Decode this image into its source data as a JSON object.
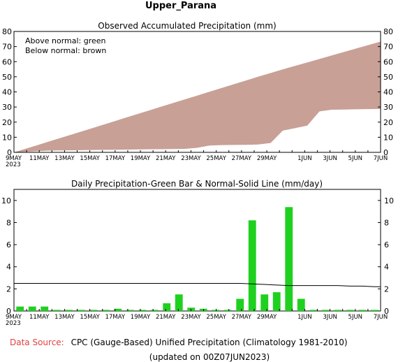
{
  "page_title": "Upper_Parana",
  "footer": {
    "source_label": "Data Source:",
    "source_text": "CPC (Gauge-Based) Unified Precipitation (Climatology 1981-2010)",
    "updated": "(updated on 00Z07JUN2023)"
  },
  "colors": {
    "above_normal": "#00c000",
    "below_normal": "#c8a096",
    "bar": "#1fd11f",
    "source_label": "#e04040"
  },
  "chart_data": [
    {
      "type": "area",
      "title": "Observed Accumulated Precipitation (mm)",
      "annotations": [
        "Above normal: green",
        "Below normal: brown"
      ],
      "x_tick_labels": [
        "9MAY\n2023",
        "11MAY",
        "13MAY",
        "15MAY",
        "17MAY",
        "19MAY",
        "21MAY",
        "23MAY",
        "25MAY",
        "27MAY",
        "29MAY",
        "1JUN",
        "3JUN",
        "5JUN",
        "7JUN"
      ],
      "x_tick_days": [
        0,
        2,
        4,
        6,
        8,
        10,
        12,
        14,
        16,
        18,
        20,
        23,
        25,
        27,
        29
      ],
      "ylim": [
        0,
        80
      ],
      "y_ticks": [
        0,
        10,
        20,
        30,
        40,
        50,
        60,
        70,
        80
      ],
      "series": [
        {
          "name": "Observed",
          "values": [
            0.4,
            0.8,
            1.2,
            1.3,
            1.4,
            1.5,
            1.6,
            1.7,
            1.8,
            1.9,
            2.0,
            2.1,
            2.2,
            2.3,
            3.0,
            4.5,
            4.8,
            4.9,
            5.0,
            5.2,
            6.2,
            14.4,
            16.0,
            17.7,
            27.1,
            28.2,
            28.3,
            28.5,
            28.6,
            28.7
          ]
        },
        {
          "name": "Normal",
          "values": [
            2.5,
            5.0,
            7.5,
            10.0,
            12.5,
            15.0,
            17.5,
            20.0,
            22.6,
            25.1,
            27.6,
            30.1,
            32.6,
            35.1,
            37.6,
            40.1,
            42.6,
            45.1,
            47.6,
            50.1,
            52.5,
            54.9,
            57.2,
            59.5,
            61.8,
            64.1,
            66.4,
            68.7,
            71.0,
            73.3
          ]
        }
      ]
    },
    {
      "type": "bar",
      "title": "Daily Precipitation-Green Bar & Normal-Solid Line (mm/day)",
      "x_tick_labels": [
        "9MAY\n2023",
        "11MAY",
        "13MAY",
        "15MAY",
        "17MAY",
        "19MAY",
        "21MAY",
        "23MAY",
        "25MAY",
        "27MAY",
        "29MAY",
        "1JUN",
        "3JUN",
        "5JUN",
        "7JUN"
      ],
      "x_tick_days": [
        0,
        2,
        4,
        6,
        8,
        10,
        12,
        14,
        16,
        18,
        20,
        23,
        25,
        27,
        29
      ],
      "ylim": [
        0,
        11
      ],
      "y_ticks": [
        0,
        2,
        4,
        6,
        8,
        10
      ],
      "series": [
        {
          "name": "Daily Precipitation",
          "values": [
            0.4,
            0.4,
            0.4,
            0.1,
            0.1,
            0.1,
            0.1,
            0.1,
            0.2,
            0.1,
            0.1,
            0.1,
            0.7,
            1.5,
            0.3,
            0.2,
            0.1,
            0.1,
            1.1,
            8.2,
            1.5,
            1.7,
            9.4,
            1.1,
            0.1,
            0.1,
            0.1,
            0.1,
            0.1,
            0.1
          ]
        },
        {
          "name": "Normal",
          "values": [
            2.5,
            2.5,
            2.5,
            2.5,
            2.5,
            2.5,
            2.5,
            2.5,
            2.5,
            2.5,
            2.5,
            2.5,
            2.5,
            2.5,
            2.5,
            2.5,
            2.5,
            2.5,
            2.5,
            2.45,
            2.4,
            2.35,
            2.3,
            2.3,
            2.3,
            2.3,
            2.3,
            2.25,
            2.25,
            2.2
          ]
        }
      ]
    }
  ]
}
